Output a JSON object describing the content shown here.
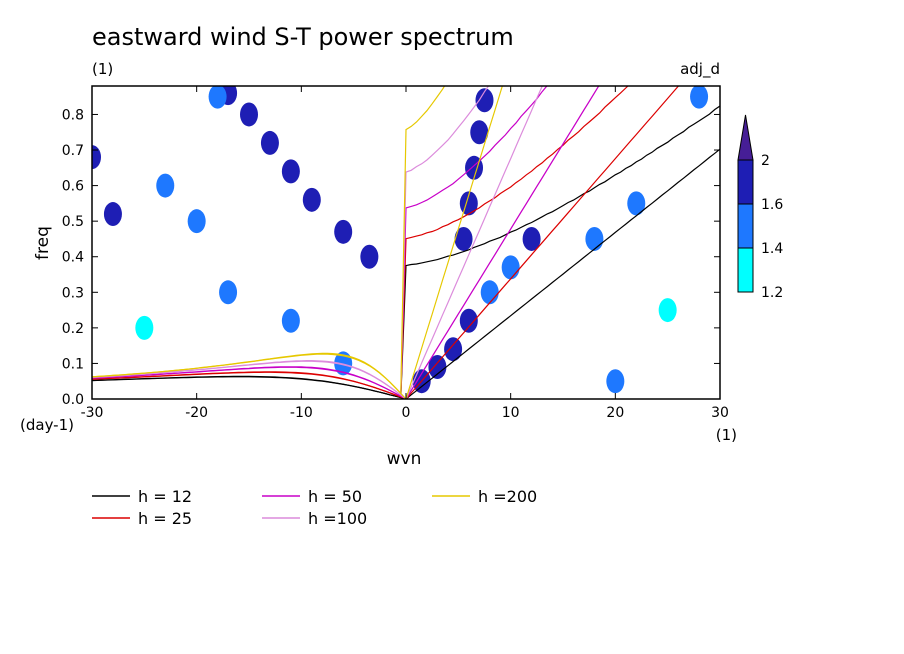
{
  "chart_data": {
    "type": "heatmap",
    "title": "eastward wind S-T power spectrum",
    "subtitle_left": "(1)",
    "subtitle_right": "adj_d",
    "xlabel": "wvn",
    "ylabel": "freq",
    "xunit": "(1)",
    "yunit": "(day-1)",
    "xlim": [
      -30,
      30
    ],
    "ylim": [
      0,
      0.88
    ],
    "xticks": [
      -30,
      -20,
      -10,
      0,
      10,
      20,
      30
    ],
    "xtick_labels": [
      "-30",
      "-20",
      "-10",
      "0",
      "10",
      "20",
      "30"
    ],
    "yticks": [
      0.0,
      0.1,
      0.2,
      0.3,
      0.4,
      0.5,
      0.6,
      0.7,
      0.8
    ],
    "ytick_labels": [
      "0.0",
      "0.1",
      "0.2",
      "0.3",
      "0.4",
      "0.5",
      "0.6",
      "0.7",
      "0.8"
    ],
    "colorbar": {
      "levels": [
        1.2,
        1.4,
        1.6,
        2
      ],
      "labels": [
        "1.2",
        "1.4",
        "1.6",
        "2"
      ],
      "colors": [
        "#00ffff",
        "#1e78ff",
        "#1e1eb4",
        "#461e96"
      ]
    },
    "blobs": [
      {
        "x": -3.5,
        "y": 0.4,
        "v": 1.8
      },
      {
        "x": -6,
        "y": 0.47,
        "v": 1.8
      },
      {
        "x": -9,
        "y": 0.56,
        "v": 1.7
      },
      {
        "x": -11,
        "y": 0.64,
        "v": 1.8
      },
      {
        "x": -13,
        "y": 0.72,
        "v": 1.7
      },
      {
        "x": -15,
        "y": 0.8,
        "v": 1.6
      },
      {
        "x": -17,
        "y": 0.86,
        "v": 1.6
      },
      {
        "x": 5.5,
        "y": 0.45,
        "v": 1.9
      },
      {
        "x": 6,
        "y": 0.55,
        "v": 1.9
      },
      {
        "x": 6.5,
        "y": 0.65,
        "v": 1.8
      },
      {
        "x": 7,
        "y": 0.75,
        "v": 1.9
      },
      {
        "x": 7.5,
        "y": 0.84,
        "v": 1.8
      },
      {
        "x": 1.5,
        "y": 0.05,
        "v": 1.9
      },
      {
        "x": 3,
        "y": 0.09,
        "v": 1.9
      },
      {
        "x": 4.5,
        "y": 0.14,
        "v": 1.7
      },
      {
        "x": 6,
        "y": 0.22,
        "v": 1.6
      },
      {
        "x": 8,
        "y": 0.3,
        "v": 1.5
      },
      {
        "x": 10,
        "y": 0.37,
        "v": 1.5
      },
      {
        "x": 12,
        "y": 0.45,
        "v": 1.7
      },
      {
        "x": -28,
        "y": 0.52,
        "v": 1.6
      },
      {
        "x": -20,
        "y": 0.5,
        "v": 1.5
      },
      {
        "x": -23,
        "y": 0.6,
        "v": 1.5
      },
      {
        "x": -17,
        "y": 0.3,
        "v": 1.5
      },
      {
        "x": -11,
        "y": 0.22,
        "v": 1.5
      },
      {
        "x": -6,
        "y": 0.1,
        "v": 1.5
      },
      {
        "x": 18,
        "y": 0.45,
        "v": 1.5
      },
      {
        "x": 22,
        "y": 0.55,
        "v": 1.4
      },
      {
        "x": 20,
        "y": 0.05,
        "v": 1.4
      },
      {
        "x": -30,
        "y": 0.68,
        "v": 1.6
      },
      {
        "x": -18,
        "y": 0.85,
        "v": 1.4
      },
      {
        "x": 28,
        "y": 0.85,
        "v": 1.4
      },
      {
        "x": 25,
        "y": 0.25,
        "v": 1.3
      },
      {
        "x": -25,
        "y": 0.2,
        "v": 1.3
      }
    ],
    "dispersion_curves": [
      {
        "name": "h = 12",
        "h": 12,
        "color": "#000000"
      },
      {
        "name": "h = 25",
        "h": 25,
        "color": "#dc0000"
      },
      {
        "name": "h = 50",
        "h": 50,
        "color": "#c800c8"
      },
      {
        "name": "h =100",
        "h": 100,
        "color": "#dc8cdc"
      },
      {
        "name": "h =200",
        "h": 200,
        "color": "#e6c800"
      }
    ]
  }
}
